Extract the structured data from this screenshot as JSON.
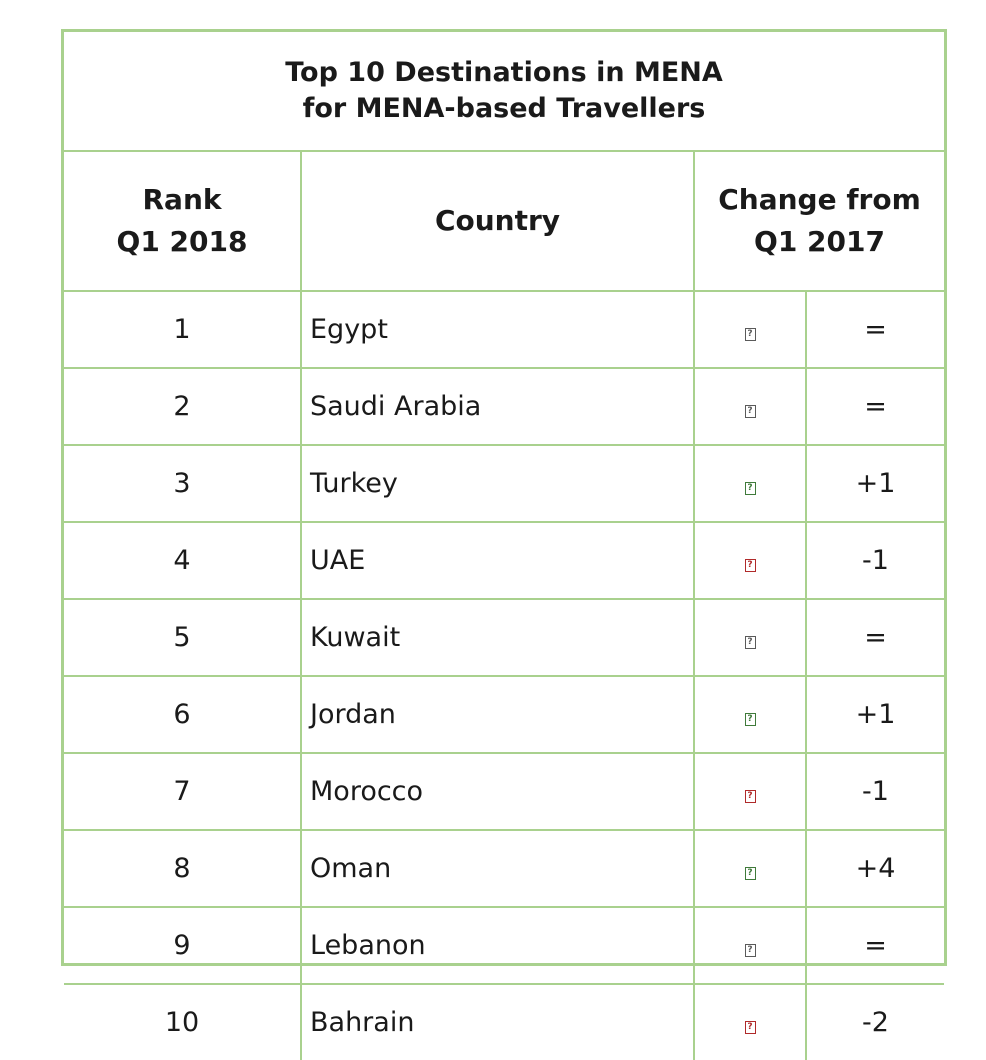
{
  "title": {
    "line1": "Top 10 Destinations in MENA",
    "line2": "for MENA-based Travellers"
  },
  "headers": {
    "rank_line1": "Rank",
    "rank_line2": "Q1 2018",
    "country": "Country",
    "change_line1": "Change from",
    "change_line2": "Q1 2017"
  },
  "icon_glyph": "?",
  "rows": [
    {
      "rank": "1",
      "country": "Egypt",
      "trend": "same",
      "change": "="
    },
    {
      "rank": "2",
      "country": "Saudi Arabia",
      "trend": "same",
      "change": "="
    },
    {
      "rank": "3",
      "country": "Turkey",
      "trend": "up",
      "change": "+1"
    },
    {
      "rank": "4",
      "country": "UAE",
      "trend": "down",
      "change": "-1"
    },
    {
      "rank": "5",
      "country": "Kuwait",
      "trend": "same",
      "change": "="
    },
    {
      "rank": "6",
      "country": "Jordan",
      "trend": "up",
      "change": "+1"
    },
    {
      "rank": "7",
      "country": "Morocco",
      "trend": "down",
      "change": "-1"
    },
    {
      "rank": "8",
      "country": "Oman",
      "trend": "up",
      "change": "+4"
    },
    {
      "rank": "9",
      "country": "Lebanon",
      "trend": "same",
      "change": "="
    },
    {
      "rank": "10",
      "country": "Bahrain",
      "trend": "down",
      "change": "-2"
    }
  ],
  "colors": {
    "border": "#a9d18e",
    "trend_up": "#3f7a3a",
    "trend_down": "#b02a2a",
    "trend_same": "#5a5a5a"
  },
  "icons": {
    "same": "trend-same-icon",
    "up": "trend-up-icon",
    "down": "trend-down-icon"
  }
}
